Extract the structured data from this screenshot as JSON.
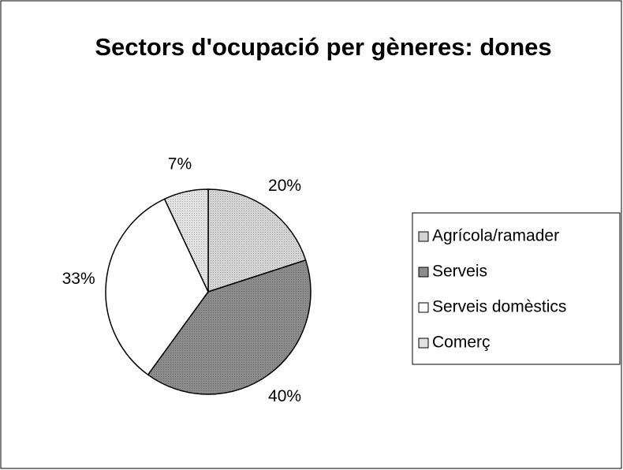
{
  "chart_data": {
    "type": "pie",
    "title": "Sectors d'ocupació per gèneres: dones",
    "categories": [
      "Agrícola/ramader",
      "Serveis",
      "Serveis domèstics",
      "Comerç"
    ],
    "values": [
      20,
      40,
      33,
      7
    ],
    "value_labels": [
      "20%",
      "40%",
      "33%",
      "7%"
    ],
    "colors": [
      "#d4d4d4",
      "#8c8c8c",
      "#ffffff",
      "#e2e2e2"
    ],
    "legend": "right"
  }
}
